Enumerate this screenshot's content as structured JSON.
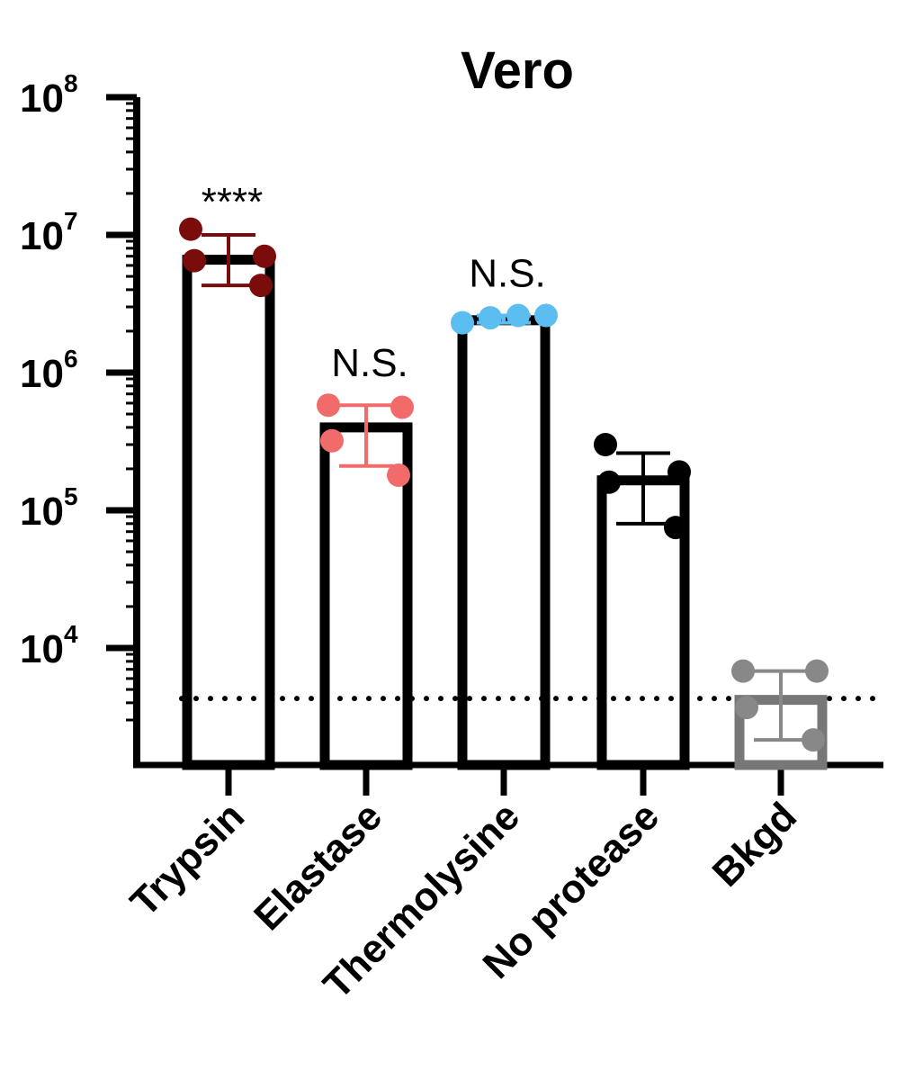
{
  "chart_data": {
    "type": "bar",
    "title": "Vero",
    "xlabel": "",
    "ylabel": "",
    "y_scale": "log",
    "ylim": [
      2500,
      100000000
    ],
    "y_ticks": [
      {
        "value": 10000,
        "base": "10",
        "exp": "4"
      },
      {
        "value": 100000,
        "base": "10",
        "exp": "5"
      },
      {
        "value": 1000000,
        "base": "10",
        "exp": "6"
      },
      {
        "value": 10000000,
        "base": "10",
        "exp": "7"
      },
      {
        "value": 100000000,
        "base": "10",
        "exp": "8"
      }
    ],
    "grid": false,
    "detection_limit": 4300,
    "categories": [
      "Trypsin",
      "Elastase",
      "Thermolysine",
      "No protease",
      "Bkgd"
    ],
    "bars": [
      {
        "category": "Trypsin",
        "mean": 6600000,
        "err_low": 4300000,
        "err_high": 10000000,
        "points": [
          11000000,
          7000000,
          6500000,
          4300000
        ],
        "color": "#7a0c0c",
        "bar_color": "#000000",
        "annotation": "****"
      },
      {
        "category": "Elastase",
        "mean": 400000,
        "err_low": 210000,
        "err_high": 580000,
        "points": [
          580000,
          560000,
          320000,
          180000
        ],
        "color": "#f26b6b",
        "bar_color": "#000000",
        "annotation": "N.S."
      },
      {
        "category": "Thermolysine",
        "mean": 2400000,
        "err_low": 2300000,
        "err_high": 2600000,
        "points": [
          2300000,
          2500000,
          2600000,
          2600000
        ],
        "color": "#5bbdf0",
        "bar_color": "#000000",
        "annotation": "N.S."
      },
      {
        "category": "No protease",
        "mean": 165000,
        "err_low": 80000,
        "err_high": 260000,
        "points": [
          300000,
          190000,
          160000,
          75000
        ],
        "color": "#000000",
        "bar_color": "#000000",
        "annotation": ""
      },
      {
        "category": "Bkgd",
        "mean": 4200,
        "err_low": 2150,
        "err_high": 6800,
        "points": [
          6800,
          6800,
          3700,
          2150
        ],
        "color": "#888888",
        "bar_color": "#777777",
        "annotation": ""
      }
    ]
  }
}
